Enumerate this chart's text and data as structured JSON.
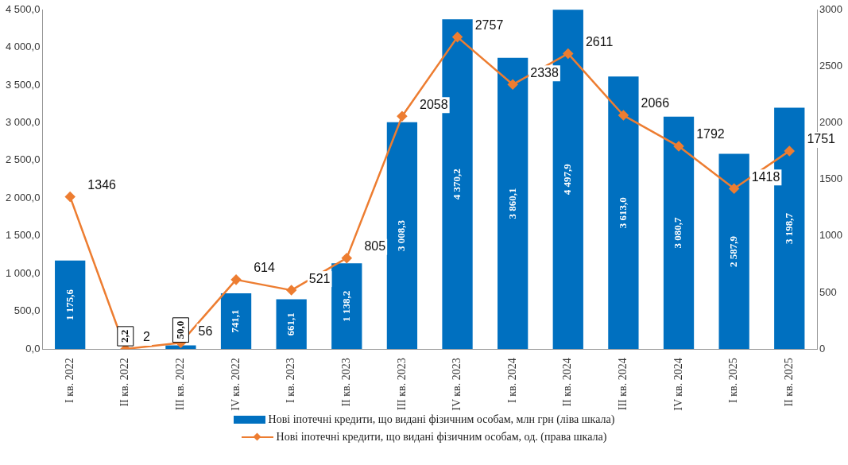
{
  "chart_data": {
    "type": "bar",
    "categories": [
      "I кв. 2022",
      "II кв. 2022",
      "III кв. 2022",
      "IV кв. 2022",
      "I кв. 2023",
      "II кв. 2023",
      "III кв. 2023",
      "IV кв. 2023",
      "I кв. 2024",
      "II кв. 2024",
      "III кв. 2024",
      "IV кв. 2024",
      "I кв. 2025",
      "II кв. 2025"
    ],
    "series": [
      {
        "name": "Нові іпотечні кредити, що видані фізичним особам, млн грн (ліва шкала)",
        "color": "#0070c0",
        "values": [
          1175.6,
          2.2,
          50.0,
          741.1,
          661.1,
          1138.2,
          3008.3,
          4370.2,
          3860.1,
          4497.9,
          3613.0,
          3080.7,
          2587.9,
          3198.7
        ],
        "value_labels": [
          "1 175,6",
          "2,2",
          "50,0",
          "741,1",
          "661,1",
          "1 138,2",
          "3 008,3",
          "4 370,2",
          "3 860,1",
          "4 497,9",
          "3 613,0",
          "3 080,7",
          "2 587,9",
          "3 198,7"
        ]
      },
      {
        "name": "Нові іпотечні кредити, що видані фізичним особам, од. (права шкала)",
        "type": "line",
        "axis": "y2",
        "color": "#ed7d31",
        "marker": "diamond",
        "values": [
          1346,
          2,
          56,
          614,
          521,
          805,
          2058,
          2757,
          2338,
          2611,
          2066,
          1792,
          1418,
          1751
        ],
        "value_labels": [
          "1346",
          "2",
          "56",
          "614",
          "521",
          "805",
          "2058",
          "2757",
          "2338",
          "2611",
          "2066",
          "1792",
          "1418",
          "1751"
        ]
      }
    ],
    "ylim": [
      0,
      4500
    ],
    "yticks": [
      {
        "value": 0,
        "label": "0,0"
      },
      {
        "value": 500,
        "label": "500,0"
      },
      {
        "value": 1000,
        "label": "1 000,0"
      },
      {
        "value": 1500,
        "label": "1 500,0"
      },
      {
        "value": 2000,
        "label": "2 000,0"
      },
      {
        "value": 2500,
        "label": "2 500,0"
      },
      {
        "value": 3000,
        "label": "3 000,0"
      },
      {
        "value": 3500,
        "label": "3 500,0"
      },
      {
        "value": 4000,
        "label": "4 000,0"
      },
      {
        "value": 4500,
        "label": "4 500,0"
      }
    ],
    "y2lim": [
      0,
      3000
    ],
    "y2ticks": [
      0,
      500,
      1000,
      1500,
      2000,
      2500,
      3000
    ],
    "grid": false,
    "legend": "bottom"
  }
}
